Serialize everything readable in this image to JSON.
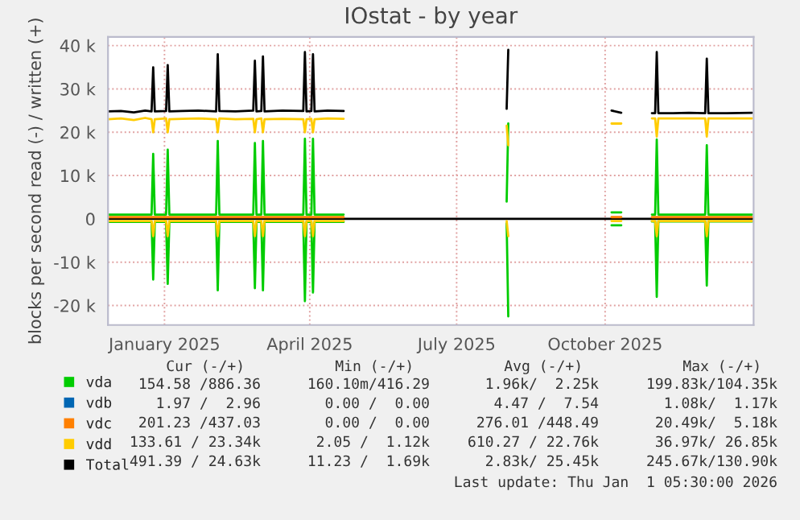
{
  "chart_data": {
    "type": "line",
    "title": "IOstat - by year",
    "ylabel": "blocks per second read (-) / written (+)",
    "x": [
      "2024-11-27",
      "2024-12-05",
      "2024-12-13",
      "2024-12-20",
      "2024-12-24",
      "2024-12-25",
      "2024-12-26",
      "2025-01-02",
      "2025-01-03",
      "2025-01-04",
      "2025-01-12",
      "2025-01-22",
      "2025-02-02",
      "2025-02-03",
      "2025-02-04",
      "2025-02-14",
      "2025-02-25",
      "2025-02-26",
      "2025-02-27",
      "2025-03-02",
      "2025-03-03",
      "2025-03-04",
      "2025-03-15",
      "2025-03-28",
      "2025-03-29",
      "2025-03-30",
      "2025-04-02",
      "2025-04-03",
      "2025-04-04",
      "2025-04-12",
      "2025-04-22",
      "2025-05-15",
      "2025-08-01",
      "2025-08-02",
      "2025-08-20",
      "2025-10-05",
      "2025-10-11",
      "2025-10-20",
      "2025-10-30",
      "2025-11-01",
      "2025-11-02",
      "2025-11-03",
      "2025-11-12",
      "2025-11-22",
      "2025-12-02",
      "2025-12-03",
      "2025-12-04",
      "2025-12-15",
      "2025-12-31"
    ],
    "series": [
      {
        "name": "vda",
        "color": "#00cc00",
        "values": [
          1000,
          1000,
          1000,
          1000,
          1000,
          15000,
          1000,
          1000,
          16000,
          1000,
          1000,
          1000,
          1000,
          18000,
          1000,
          1000,
          1000,
          17500,
          1000,
          1000,
          18000,
          1000,
          1000,
          1000,
          18500,
          1000,
          1000,
          18500,
          1000,
          1000,
          1000,
          null,
          4000,
          22000,
          null,
          1500,
          1500,
          null,
          1000,
          1000,
          18300,
          1000,
          1000,
          1000,
          1000,
          17000,
          1000,
          1000,
          1000
        ]
      },
      {
        "color": "#00cc00",
        "values": [
          -700,
          -700,
          -700,
          -700,
          -700,
          -14000,
          -700,
          -700,
          -15000,
          -700,
          -700,
          -700,
          -700,
          -16500,
          -700,
          -700,
          -700,
          -16000,
          -700,
          -700,
          -16500,
          -700,
          -700,
          -700,
          -19000,
          -700,
          -700,
          -17000,
          -700,
          -700,
          -700,
          null,
          -1000,
          -22500,
          null,
          -1500,
          -1500,
          null,
          -600,
          -600,
          -18000,
          -600,
          -600,
          -600,
          -600,
          -15400,
          -600,
          -600,
          -600
        ]
      },
      {
        "name": "vdb",
        "color": "#0066b3",
        "values": [
          null,
          null,
          null,
          null,
          null,
          null,
          null,
          null,
          null,
          null,
          null,
          null,
          null,
          null,
          null,
          null,
          null,
          null,
          null,
          null,
          null,
          null,
          null,
          null,
          null,
          null,
          null,
          null,
          null,
          null,
          null,
          null,
          null,
          null,
          null,
          null,
          null,
          null,
          null,
          null,
          null,
          null,
          null,
          null,
          null,
          null,
          null,
          null,
          null
        ]
      },
      {
        "name": "vdc",
        "color": "#ff8000",
        "values": [
          400,
          400,
          400,
          400,
          400,
          400,
          400,
          400,
          400,
          400,
          400,
          400,
          400,
          400,
          400,
          400,
          400,
          400,
          400,
          400,
          400,
          400,
          400,
          400,
          400,
          400,
          400,
          400,
          400,
          400,
          400,
          null,
          null,
          null,
          null,
          400,
          400,
          null,
          400,
          400,
          400,
          400,
          400,
          400,
          400,
          400,
          400,
          400,
          400
        ]
      },
      {
        "name": "vdd",
        "color": "#ffcc00",
        "values": [
          23000,
          23200,
          22800,
          23300,
          23000,
          20000,
          23000,
          23200,
          20000,
          23000,
          23100,
          23200,
          23000,
          20000,
          23200,
          23000,
          23100,
          20000,
          23000,
          23200,
          20000,
          23000,
          23100,
          23000,
          20000,
          23000,
          23100,
          20000,
          23000,
          23200,
          23100,
          null,
          21500,
          17000,
          null,
          22000,
          22000,
          null,
          23200,
          23200,
          19000,
          23200,
          23200,
          23200,
          23200,
          19000,
          23200,
          23200,
          23200
        ]
      },
      {
        "color": "#ffcc00",
        "values": [
          -500,
          -500,
          -500,
          -500,
          -500,
          -4000,
          -500,
          -500,
          -4000,
          -500,
          -500,
          -500,
          -500,
          -4000,
          -500,
          -500,
          -500,
          -4000,
          -500,
          -500,
          -4000,
          -500,
          -500,
          -500,
          -4000,
          -500,
          -500,
          -4000,
          -500,
          -500,
          -500,
          null,
          -500,
          -4000,
          null,
          -500,
          -500,
          null,
          -500,
          -500,
          -4000,
          -500,
          -500,
          -500,
          -500,
          -4000,
          -500,
          -500,
          -500
        ]
      },
      {
        "name": "Total",
        "color": "#000000",
        "values": [
          24800,
          24900,
          24600,
          25000,
          24800,
          35000,
          24800,
          24900,
          35500,
          24800,
          24900,
          25000,
          24800,
          38000,
          24900,
          24800,
          25000,
          36500,
          24800,
          24900,
          37500,
          24800,
          25000,
          24900,
          38500,
          24800,
          24900,
          38000,
          24800,
          25000,
          24900,
          null,
          25400,
          39000,
          null,
          25000,
          24500,
          null,
          24400,
          24400,
          38500,
          24400,
          24400,
          24500,
          24400,
          37000,
          24400,
          24400,
          24500
        ]
      }
    ],
    "xlim": [
      "2024-11-27",
      "2026-01-01"
    ],
    "xticks": [
      {
        "value": "2025-01-01",
        "label": "January 2025"
      },
      {
        "value": "2025-04-01",
        "label": "April 2025"
      },
      {
        "value": "2025-07-01",
        "label": "July 2025"
      },
      {
        "value": "2025-10-01",
        "label": "October 2025"
      }
    ],
    "ylim": [
      -24500,
      42000
    ],
    "yticks": [
      {
        "value": -20000,
        "label": "-20 k"
      },
      {
        "value": -10000,
        "label": "-10 k"
      },
      0,
      {
        "value": 10000,
        "label": "10 k"
      },
      {
        "value": 20000,
        "label": "20 k"
      },
      {
        "value": 30000,
        "label": "30 k"
      },
      {
        "value": 40000,
        "label": "40 k"
      }
    ],
    "grid": true,
    "ref_lines": [
      {
        "axis": "y",
        "value": 0,
        "color": "#000000"
      }
    ],
    "legend": "bottom",
    "annotations": [
      "Cur (-/+)",
      "Min (-/+)",
      "Avg (-/+)",
      "Max (-/+)",
      "154.58 /886.36",
      "160.10m/416.29",
      "1.96k/  2.25k",
      "199.83k/104.35k",
      "1.97 /  2.96",
      "0.00 /  0.00",
      "4.47 /  7.54",
      "1.08k/  1.17k",
      "201.23 /437.03",
      "0.00 /  0.00",
      "276.01 /448.49",
      "20.49k/  5.18k",
      "133.61 / 23.34k",
      "2.05 /  1.12k",
      "610.27 / 22.76k",
      "36.97k/ 26.85k",
      "491.39 / 24.63k",
      "11.23 /  1.69k",
      "2.83k/ 25.45k",
      "245.67k/130.90k",
      "Last update: Thu Jan  1 05:30:00 2026"
    ]
  }
}
